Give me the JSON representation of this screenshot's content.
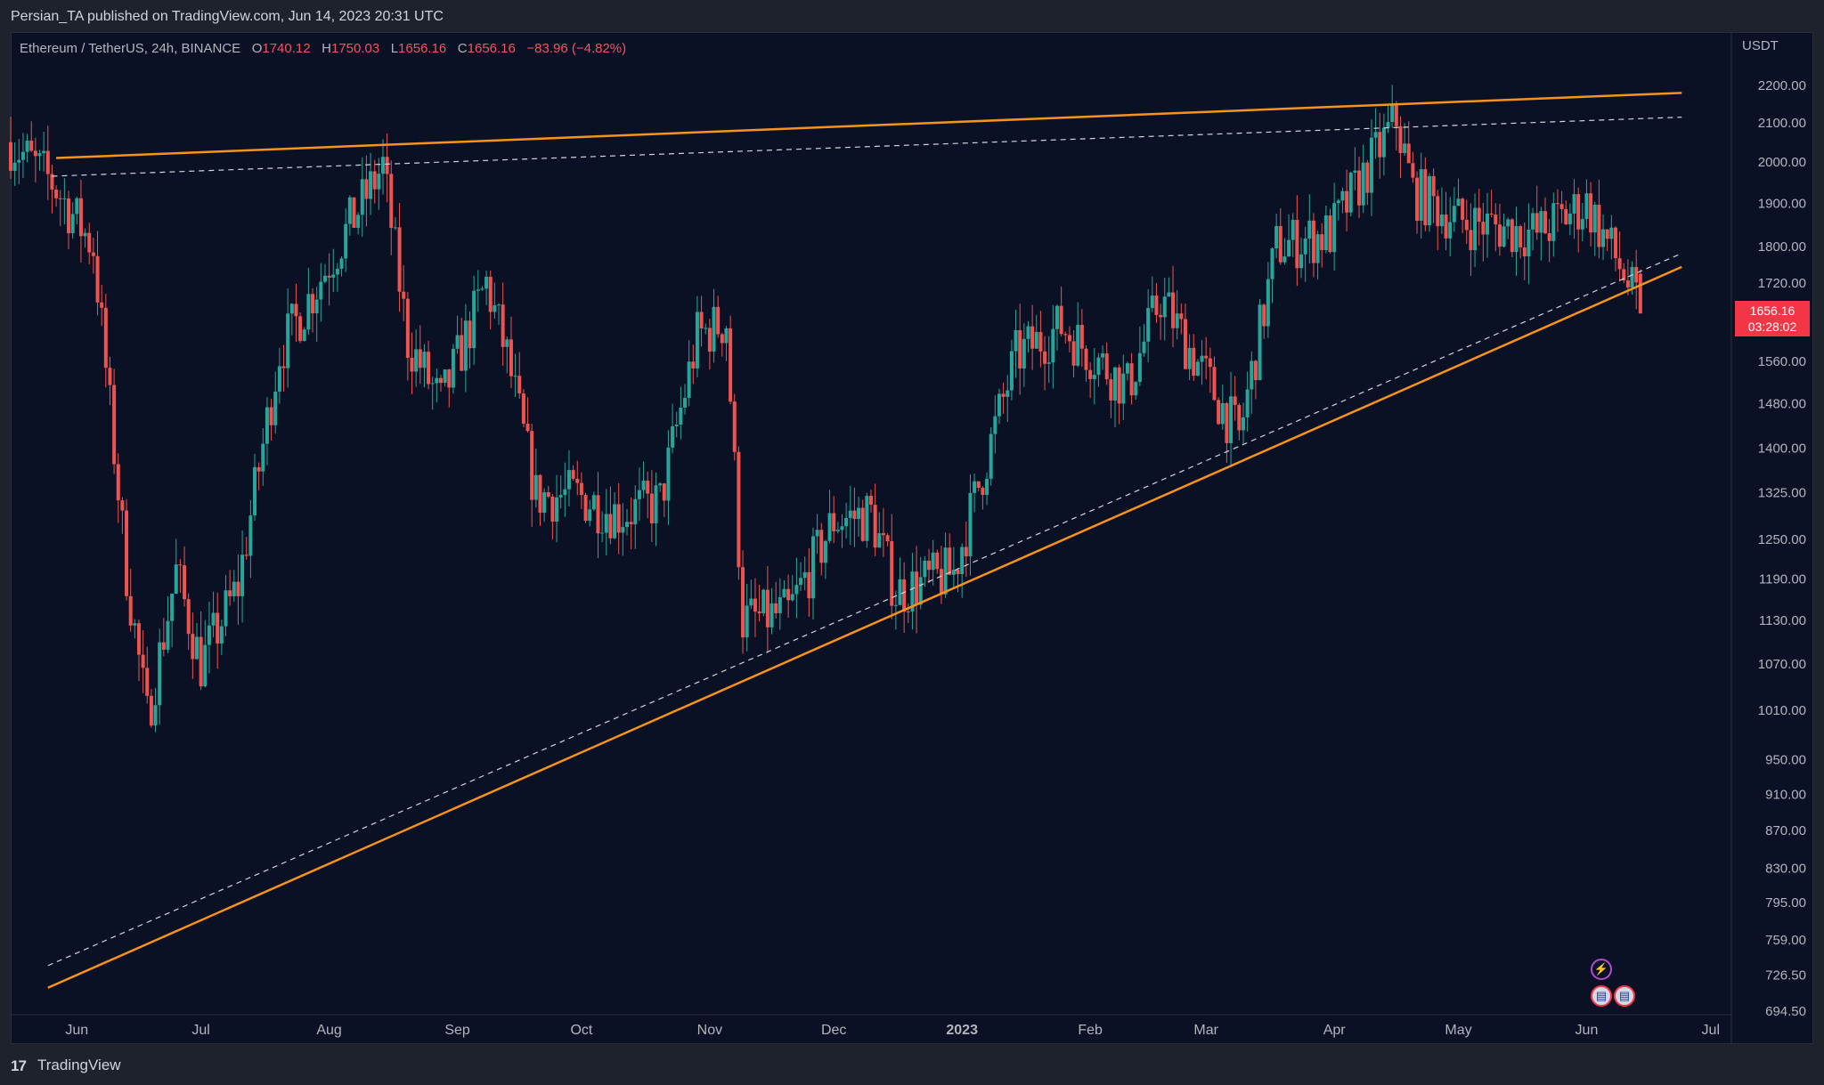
{
  "header": {
    "published_text": "Persian_TA published on TradingView.com, Jun 14, 2023 20:31 UTC"
  },
  "legend": {
    "symbol": "Ethereum / TetherUS, 24h, BINANCE",
    "open_label": "O",
    "open": "1740.12",
    "high_label": "H",
    "high": "1750.03",
    "low_label": "L",
    "low": "1656.16",
    "close_label": "C",
    "close": "1656.16",
    "change": "−83.96 (−4.82%)"
  },
  "price_axis": {
    "unit": "USDT",
    "ticks": [
      "2200.00",
      "2100.00",
      "2000.00",
      "1900.00",
      "1800.00",
      "1720.00",
      "1560.00",
      "1480.00",
      "1400.00",
      "1325.00",
      "1250.00",
      "1190.00",
      "1130.00",
      "1070.00",
      "1010.00",
      "950.00",
      "910.00",
      "870.00",
      "830.00",
      "795.00",
      "759.00",
      "726.50",
      "694.50"
    ],
    "current_price": "1656.16",
    "countdown": "03:28:02"
  },
  "time_axis": {
    "labels": [
      "Jun",
      "Jul",
      "Aug",
      "Sep",
      "Oct",
      "Nov",
      "Dec",
      "2023",
      "Feb",
      "Mar",
      "Apr",
      "May",
      "Jun",
      "Jul"
    ]
  },
  "footer": {
    "logo": "17",
    "brand": "TradingView"
  },
  "colors": {
    "background": "#0b1125",
    "up": "#26a69a",
    "down": "#ef5350",
    "trendline": "#f7931a",
    "dashed": "#d1d4dc"
  },
  "chart_data": {
    "type": "candlestick",
    "symbol": "ETHUSDT",
    "interval": "24h",
    "y_scale": "log",
    "ylim": [
      694.5,
      2300
    ],
    "x_range": [
      "2022-05-16",
      "2023-07-06"
    ],
    "x": [
      "2022-05-16",
      "2022-05-26",
      "2022-06-05",
      "2022-06-13",
      "2022-06-18",
      "2022-06-25",
      "2022-07-01",
      "2022-07-10",
      "2022-07-20",
      "2022-07-28",
      "2022-08-06",
      "2022-08-14",
      "2022-08-20",
      "2022-08-28",
      "2022-09-08",
      "2022-09-13",
      "2022-09-20",
      "2022-09-30",
      "2022-10-10",
      "2022-10-20",
      "2022-10-29",
      "2022-11-05",
      "2022-11-09",
      "2022-11-20",
      "2022-12-01",
      "2022-12-10",
      "2022-12-16",
      "2022-12-30",
      "2023-01-14",
      "2023-01-25",
      "2023-02-10",
      "2023-02-18",
      "2023-03-09",
      "2023-03-18",
      "2023-03-31",
      "2023-04-16",
      "2023-04-20",
      "2023-05-01",
      "2023-05-20",
      "2023-06-01",
      "2023-06-10",
      "2023-06-14"
    ],
    "close": [
      2050,
      1950,
      1800,
      1200,
      1000,
      1200,
      1070,
      1180,
      1580,
      1700,
      1850,
      1990,
      1600,
      1480,
      1720,
      1570,
      1320,
      1320,
      1290,
      1310,
      1610,
      1640,
      1130,
      1140,
      1280,
      1290,
      1170,
      1200,
      1570,
      1630,
      1510,
      1690,
      1420,
      1800,
      1830,
      2110,
      1930,
      1860,
      1830,
      1900,
      1740,
      1656.16
    ],
    "annotations": [
      {
        "type": "trendline",
        "style": "solid",
        "points": [
          [
            "2022-05-27",
            2010
          ],
          [
            "2023-06-24",
            2180
          ]
        ]
      },
      {
        "type": "trendline",
        "style": "dashed",
        "points": [
          [
            "2022-05-26",
            1965
          ],
          [
            "2023-06-24",
            2115
          ]
        ]
      },
      {
        "type": "trendline",
        "style": "solid",
        "points": [
          [
            "2022-05-25",
            715
          ],
          [
            "2023-06-24",
            1755
          ]
        ]
      },
      {
        "type": "trendline",
        "style": "dashed",
        "points": [
          [
            "2022-05-25",
            735
          ],
          [
            "2023-06-24",
            1785
          ]
        ]
      }
    ]
  }
}
